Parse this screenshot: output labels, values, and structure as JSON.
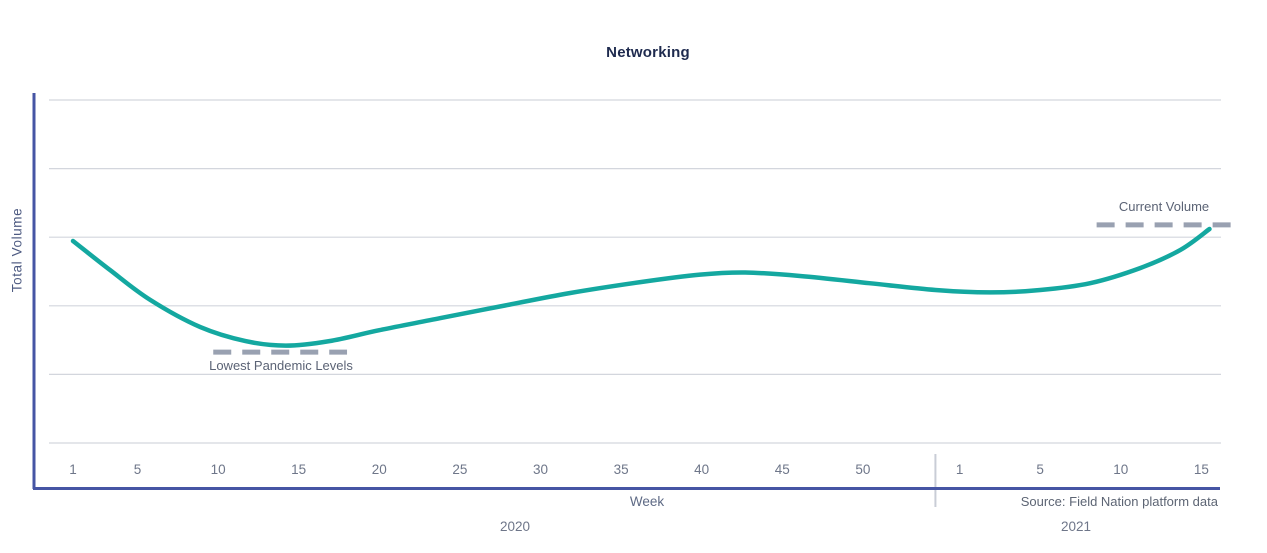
{
  "chart_data": {
    "type": "line",
    "title": "Networking",
    "xlabel": "Week",
    "ylabel": "Total Volume",
    "source": "Source: Field Nation platform data",
    "ylim": [
      0,
      100
    ],
    "y_tick_labels_visible": false,
    "grid": "horizontal",
    "gridlines_y": [
      0,
      20,
      40,
      60,
      80,
      100
    ],
    "legend": "none",
    "x_axis_groups": [
      {
        "year": "2020",
        "ticks": [
          {
            "label": "1",
            "pos": 1
          },
          {
            "label": "5",
            "pos": 5
          },
          {
            "label": "10",
            "pos": 10
          },
          {
            "label": "15",
            "pos": 15
          },
          {
            "label": "20",
            "pos": 20
          },
          {
            "label": "25",
            "pos": 25
          },
          {
            "label": "30",
            "pos": 30
          },
          {
            "label": "35",
            "pos": 35
          },
          {
            "label": "40",
            "pos": 40
          },
          {
            "label": "45",
            "pos": 45
          },
          {
            "label": "50",
            "pos": 50
          }
        ]
      },
      {
        "year": "2021",
        "ticks": [
          {
            "label": "1",
            "pos": 56
          },
          {
            "label": "5",
            "pos": 61
          },
          {
            "label": "10",
            "pos": 66
          },
          {
            "label": "15",
            "pos": 71
          }
        ]
      }
    ],
    "year_separator_pos": 54.5,
    "series": [
      {
        "name": "Total Volume",
        "points": [
          [
            1,
            58.9
          ],
          [
            3.3,
            50.4
          ],
          [
            5.8,
            41.7
          ],
          [
            8.9,
            33.8
          ],
          [
            11.7,
            29.7
          ],
          [
            14.2,
            28.4
          ],
          [
            16.9,
            29.7
          ],
          [
            20,
            32.9
          ],
          [
            23.8,
            36.4
          ],
          [
            27.8,
            40.1
          ],
          [
            31.8,
            43.7
          ],
          [
            36.2,
            46.9
          ],
          [
            39.9,
            49.1
          ],
          [
            42.7,
            49.7
          ],
          [
            46.1,
            48.7
          ],
          [
            50.4,
            46.6
          ],
          [
            54.5,
            44.6
          ],
          [
            57.9,
            43.9
          ],
          [
            61,
            44.6
          ],
          [
            64.1,
            46.6
          ],
          [
            67.2,
            51
          ],
          [
            69.7,
            56.3
          ],
          [
            71.5,
            62.4
          ]
        ]
      }
    ],
    "annotations": [
      {
        "id": "lowest-pandemic-levels",
        "label": "Lowest Pandemic Levels",
        "style": "dashed",
        "value": 26.5,
        "x_start": 9.7,
        "x_end": 18
      },
      {
        "id": "current-volume",
        "label": "Current Volume",
        "style": "dashed",
        "value": 63.6,
        "x_start": 64.5,
        "x_end": 72.9
      }
    ]
  },
  "colors": {
    "curve": "#14a8a0",
    "axis": "#4655a4",
    "gridline": "#d3d6dd",
    "dashed_annotation": "#99a1b1",
    "year_separator": "#c9cdd6",
    "title_text": "#1e2a4e",
    "tick_text": "#6e7689",
    "annotation_text": "#5b6375"
  }
}
